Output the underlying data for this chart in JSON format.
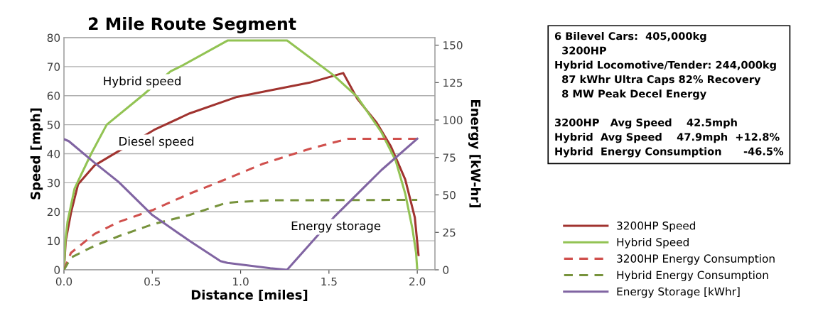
{
  "chart_data": {
    "type": "line",
    "title": "2 Mile Route Segment",
    "xlabel": "Distance [miles]",
    "ylabel": "Speed [mph]",
    "y2label": "Energy [kW-hr]",
    "xlim": [
      0,
      2.1
    ],
    "xticks": [
      {
        "value": 0,
        "label": "0.0"
      },
      {
        "value": 0.5,
        "label": "0.5"
      },
      {
        "value": 1,
        "label": "1.0"
      },
      {
        "value": 1.5,
        "label": "1.5"
      },
      {
        "value": 2,
        "label": "2.0"
      }
    ],
    "ylim": [
      0,
      80
    ],
    "yticks": [
      0,
      10,
      20,
      30,
      40,
      50,
      60,
      70,
      80
    ],
    "y2lim": [
      0,
      155
    ],
    "y2ticks": [
      0,
      25,
      50,
      75,
      100,
      125,
      150
    ],
    "grid": "y",
    "legend": "right",
    "marker": "none",
    "series": [
      {
        "name": "3200HP Speed",
        "color": "#a0332f",
        "line_style": "solid",
        "x": [
          0,
          0.01,
          0.04,
          0.08,
          0.174,
          0.309,
          0.51,
          0.711,
          0.98,
          1.122,
          1.392,
          1.581,
          1.662,
          1.77,
          1.851,
          1.932,
          1.986,
          2.007
        ],
        "values": [
          0,
          10,
          19.7,
          29.5,
          36,
          40.9,
          48.2,
          53.9,
          59.6,
          61.3,
          64.5,
          67.8,
          58.8,
          50.7,
          42.5,
          31.1,
          18.1,
          5.1
        ]
      },
      {
        "name": "Hybrid Speed",
        "color": "#92c353",
        "line_style": "solid",
        "x": [
          0,
          0.008,
          0.02,
          0.06,
          0.154,
          0.242,
          0.443,
          0.604,
          0.658,
          0.926,
          1.263,
          1.527,
          1.66,
          1.797,
          1.878,
          1.932,
          1.973,
          1.993,
          2.0
        ],
        "values": [
          0,
          10,
          16.5,
          28,
          40,
          50,
          60,
          68.4,
          70,
          79,
          79,
          67,
          59.6,
          47.4,
          37.6,
          26.2,
          14,
          5.9,
          0
        ]
      },
      {
        "name": "3200HP Energy Consumption",
        "color": "#d0504d",
        "line_style": "dashed",
        "axis": "y2",
        "x": [
          0,
          0.04,
          0.174,
          0.309,
          0.5,
          0.711,
          0.913,
          1.122,
          1.392,
          1.608,
          2.0
        ],
        "values": [
          0,
          11.4,
          24,
          31.9,
          39.8,
          50.8,
          60.3,
          70.6,
          80.8,
          87.5,
          87.5
        ]
      },
      {
        "name": "Hybrid Energy Consumption",
        "color": "#77933c",
        "line_style": "dashed",
        "axis": "y2",
        "x": [
          0,
          0.04,
          0.174,
          0.309,
          0.5,
          0.711,
          0.913,
          0.98,
          1.168,
          2.0
        ],
        "values": [
          0,
          8.2,
          16.1,
          22.4,
          30.3,
          36.6,
          44.5,
          45.3,
          46.4,
          46.7
        ]
      },
      {
        "name": "Energy Storage [kWhr]",
        "color": "#8064a2",
        "line_style": "solid",
        "axis": "y2",
        "x": [
          0,
          0.027,
          0.174,
          0.309,
          0.5,
          0.711,
          0.886,
          0.926,
          1.168,
          1.263,
          1.527,
          1.662,
          1.797,
          2.0
        ],
        "values": [
          87.2,
          85.9,
          71.4,
          58.7,
          36.6,
          19.3,
          5.8,
          4.6,
          1.1,
          0,
          35,
          50.8,
          66.6,
          87.5
        ]
      }
    ],
    "annotations": [
      "Hybrid speed",
      "Diesel speed",
      "Energy storage",
      "6 Bilevel Cars:  405,000kg\n  3200HP\nHybrid Locomotive/Tender: 244,000kg\n  87 kWhr Ultra Caps 82% Recovery\n  8 MW Peak Decel Energy\n\n3200HP   Avg Speed    42.5mph\nHybrid  Avg Speed    47.9mph  +12.8%\nHybrid  Energy Consumption      -46.5%"
    ]
  }
}
